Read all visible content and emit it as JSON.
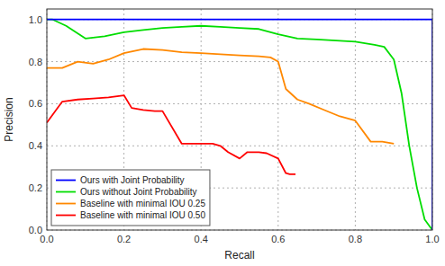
{
  "chart_data": {
    "type": "line",
    "xlabel": "Recall",
    "ylabel": "Precision",
    "xlim": [
      0,
      1.0
    ],
    "ylim": [
      0,
      1.05
    ],
    "xticks": [
      {
        "value": 0,
        "label": "0.0"
      },
      0.2,
      0.4,
      0.6,
      0.8,
      {
        "value": 1.0,
        "label": "1.0"
      }
    ],
    "yticks": [
      {
        "value": 0,
        "label": "0.0"
      },
      0.2,
      0.4,
      0.6,
      0.8,
      {
        "value": 1.0,
        "label": "1.0"
      }
    ],
    "grid": true,
    "legend": "lower left",
    "series": [
      {
        "name": "Ours with Joint Probability",
        "color": "#0000ff",
        "x": [
          0.0,
          0.001,
          0.87,
          0.87,
          1.0,
          1.0
        ],
        "values": [
          1.0,
          1.0,
          1.0,
          1.0,
          1.0,
          0.0
        ]
      },
      {
        "name": "Ours without Joint Probability",
        "color": "#00dd00",
        "x": [
          0.0,
          0.015,
          0.05,
          0.1,
          0.15,
          0.2,
          0.25,
          0.3,
          0.35,
          0.4,
          0.45,
          0.5,
          0.55,
          0.6,
          0.65,
          0.7,
          0.75,
          0.8,
          0.85,
          0.875,
          0.9,
          0.92,
          0.94,
          0.96,
          0.98,
          1.0
        ],
        "values": [
          1.0,
          1.0,
          0.97,
          0.91,
          0.92,
          0.94,
          0.95,
          0.96,
          0.965,
          0.97,
          0.965,
          0.96,
          0.955,
          0.93,
          0.91,
          0.905,
          0.9,
          0.895,
          0.88,
          0.87,
          0.81,
          0.65,
          0.4,
          0.2,
          0.05,
          0.0
        ]
      },
      {
        "name": "Baseline with minimal IOU 0.25",
        "color": "#ff8800",
        "x": [
          0.0,
          0.04,
          0.08,
          0.12,
          0.16,
          0.2,
          0.25,
          0.3,
          0.35,
          0.4,
          0.45,
          0.5,
          0.55,
          0.58,
          0.6,
          0.62,
          0.65,
          0.68,
          0.72,
          0.76,
          0.8,
          0.84,
          0.87,
          0.9
        ],
        "values": [
          0.77,
          0.77,
          0.8,
          0.79,
          0.81,
          0.84,
          0.86,
          0.855,
          0.845,
          0.84,
          0.835,
          0.83,
          0.825,
          0.82,
          0.8,
          0.67,
          0.62,
          0.6,
          0.57,
          0.54,
          0.52,
          0.42,
          0.42,
          0.41
        ]
      },
      {
        "name": "Baseline with minimal IOU 0.50",
        "color": "#ff0000",
        "x": [
          0.0,
          0.04,
          0.08,
          0.12,
          0.16,
          0.2,
          0.22,
          0.25,
          0.28,
          0.3,
          0.35,
          0.4,
          0.43,
          0.45,
          0.47,
          0.5,
          0.52,
          0.55,
          0.57,
          0.6,
          0.62,
          0.63,
          0.645
        ],
        "values": [
          0.51,
          0.61,
          0.62,
          0.625,
          0.63,
          0.64,
          0.58,
          0.57,
          0.565,
          0.565,
          0.41,
          0.41,
          0.41,
          0.4,
          0.37,
          0.34,
          0.37,
          0.37,
          0.365,
          0.34,
          0.27,
          0.265,
          0.265
        ]
      }
    ]
  }
}
